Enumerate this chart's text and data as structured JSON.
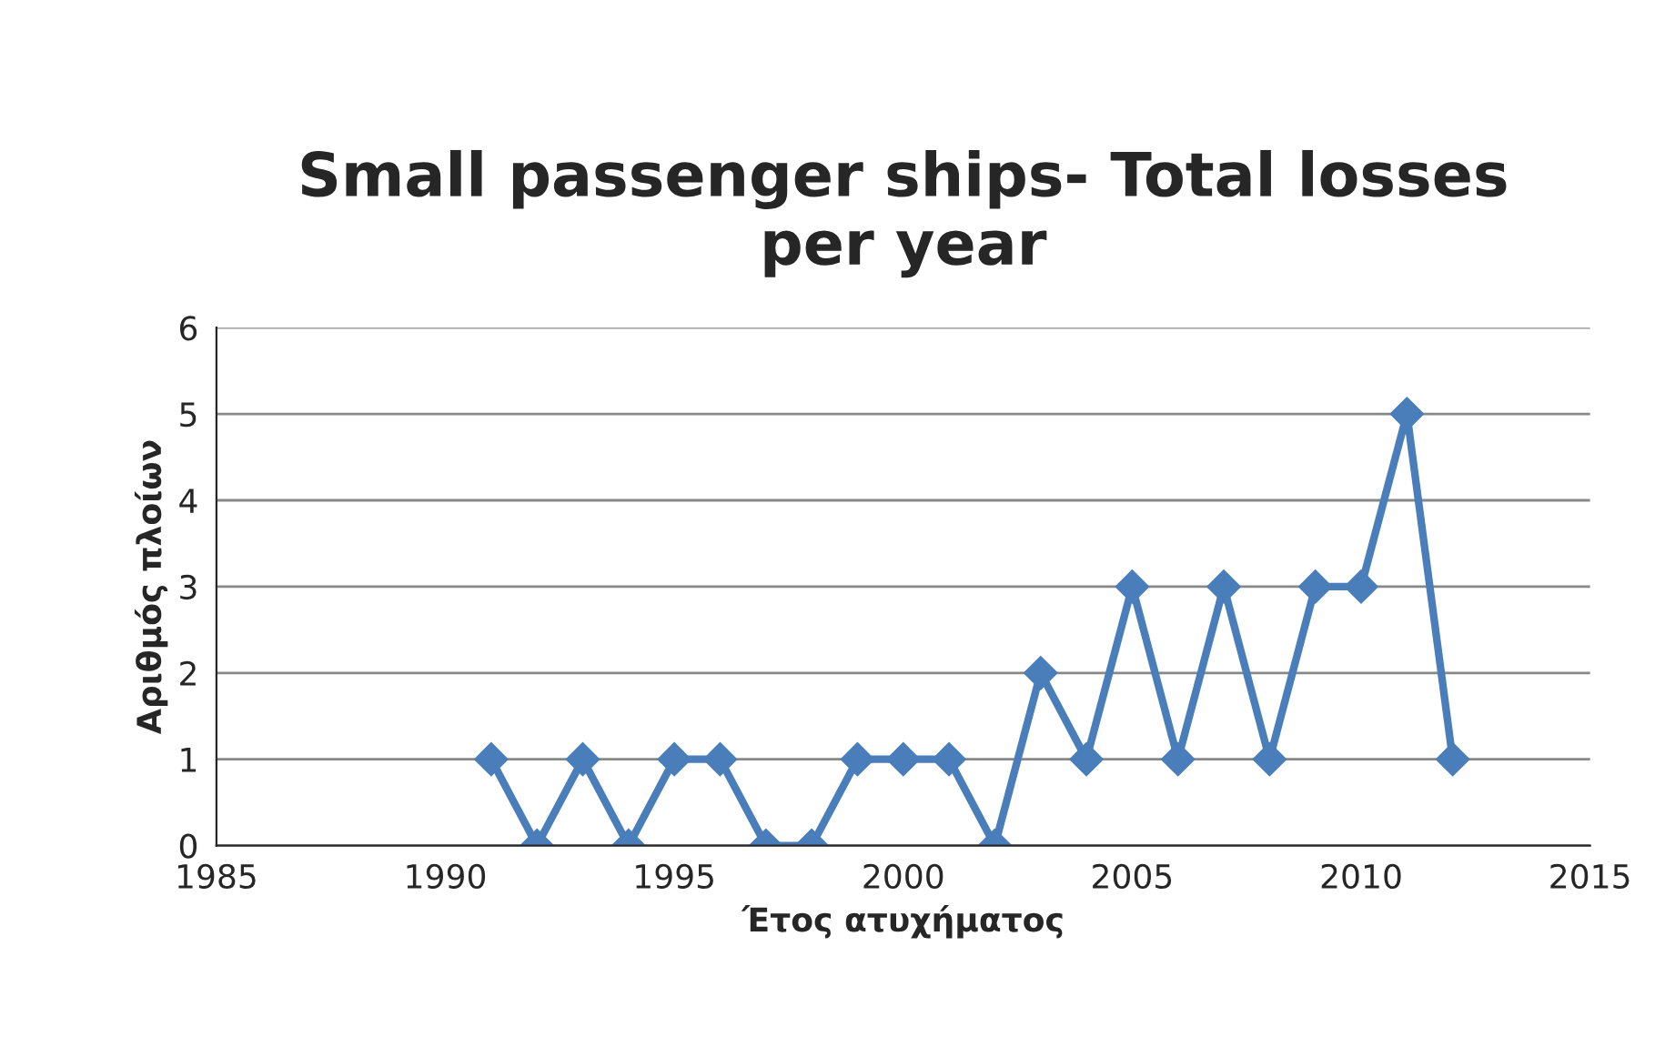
{
  "chart_data": {
    "type": "line",
    "title": "Small passenger ships- Total losses\nper year",
    "xlabel": "Έτος ατυχήματος",
    "ylabel": "Αριθμός πλοίων",
    "x": [
      1991,
      1992,
      1993,
      1994,
      1995,
      1996,
      1997,
      1998,
      1999,
      2000,
      2001,
      2002,
      2003,
      2004,
      2005,
      2006,
      2007,
      2008,
      2009,
      2010,
      2011,
      2012
    ],
    "series": [
      {
        "color": "#4a7ebb",
        "values": [
          1,
          0,
          1,
          0,
          1,
          1,
          0,
          0,
          1,
          1,
          1,
          0,
          2,
          1,
          3,
          1,
          3,
          1,
          3,
          3,
          5,
          1
        ]
      }
    ],
    "xlim": [
      1985,
      2015
    ],
    "xticks": [
      1985,
      1990,
      1995,
      2000,
      2005,
      2010,
      2015
    ],
    "ylim": [
      0,
      6
    ],
    "yticks": [
      0,
      1,
      2,
      3,
      4,
      5,
      6
    ],
    "grid": "y",
    "marker": "diamond",
    "line_style": "solid",
    "legend": false
  }
}
